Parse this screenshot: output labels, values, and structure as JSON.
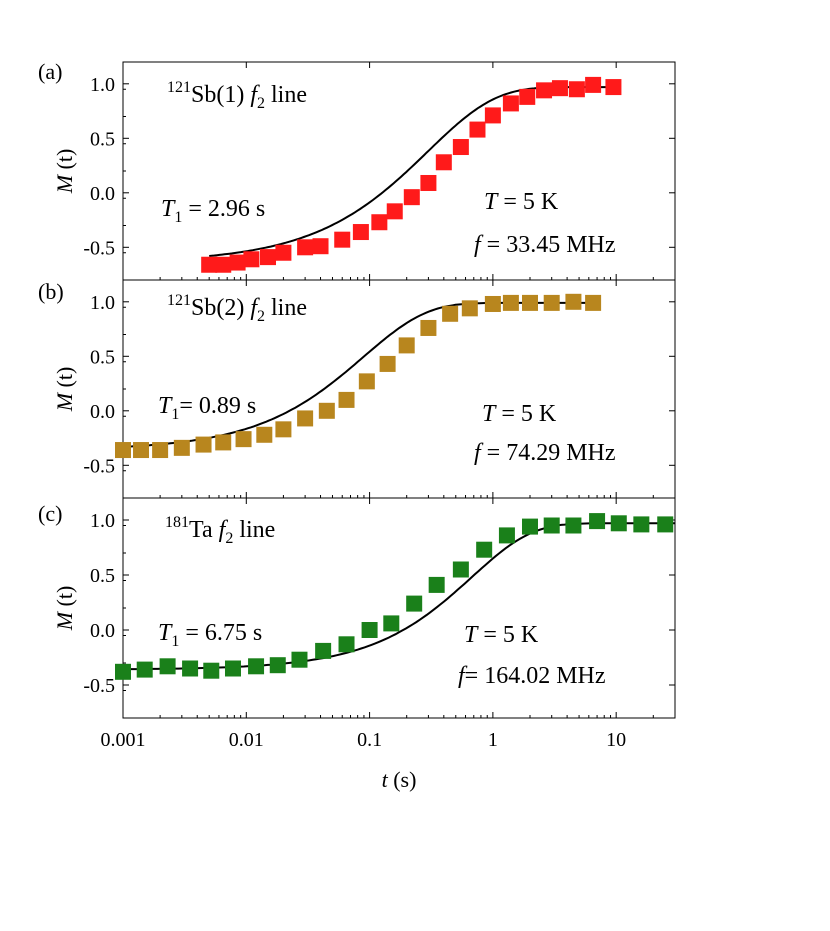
{
  "chart_data": [
    {
      "type": "scatter",
      "panel_label": "(a)",
      "color": "#ff1a1a",
      "nucleus_mass": "121",
      "nucleus_rest": "Sb(1) ",
      "line_f": "f",
      "line_sub": "2",
      "line_word": " line",
      "t1_sym": "T",
      "t1_sub": "1",
      "t1_value": " = 2.96 s",
      "temp_sym": "T",
      "temp_value": " = 5 K",
      "freq_sym": "f",
      "freq_value": " = 33.45 MHz",
      "ylabel": "M (t)",
      "ylim": [
        -0.8,
        1.2
      ],
      "yticks": [
        "1.0",
        "0.5",
        "0.0",
        "-0.5"
      ],
      "ytick_values": [
        1.0,
        0.5,
        0.0,
        -0.5
      ],
      "fit": {
        "T1": 2.96,
        "M0": -0.64,
        "Minf": 0.97,
        "beta": 0.8
      },
      "x": [
        0.005,
        0.0065,
        0.0085,
        0.011,
        0.015,
        0.02,
        0.03,
        0.04,
        0.06,
        0.085,
        0.12,
        0.16,
        0.22,
        0.3,
        0.4,
        0.55,
        0.75,
        1.0,
        1.4,
        1.9,
        2.6,
        3.5,
        4.8,
        6.5,
        9.5
      ],
      "y": [
        -0.66,
        -0.66,
        -0.64,
        -0.61,
        -0.59,
        -0.55,
        -0.5,
        -0.49,
        -0.43,
        -0.36,
        -0.27,
        -0.17,
        -0.04,
        0.09,
        0.28,
        0.42,
        0.58,
        0.71,
        0.82,
        0.88,
        0.94,
        0.96,
        0.95,
        0.99,
        0.97
      ]
    },
    {
      "type": "scatter",
      "panel_label": "(b)",
      "color": "#b8861e",
      "nucleus_mass": "121",
      "nucleus_rest": "Sb(2) ",
      "line_f": "f",
      "line_sub": "2",
      "line_word": " line",
      "t1_sym": "T",
      "t1_sub": "1",
      "t1_value": "= 0.89 s",
      "temp_sym": "T",
      "temp_value": " = 5 K",
      "freq_sym": "f",
      "freq_value": " = 74.29 MHz",
      "ylabel": "M (t)",
      "ylim": [
        -0.8,
        1.2
      ],
      "yticks": [
        "1.0",
        "0.5",
        "0.0",
        "-0.5"
      ],
      "ytick_values": [
        1.0,
        0.5,
        0.0,
        -0.5
      ],
      "fit": {
        "T1": 0.89,
        "M0": -0.36,
        "Minf": 0.99,
        "beta": 0.85
      },
      "x": [
        0.001,
        0.0014,
        0.002,
        0.003,
        0.0045,
        0.0065,
        0.0095,
        0.014,
        0.02,
        0.03,
        0.045,
        0.065,
        0.095,
        0.14,
        0.2,
        0.3,
        0.45,
        0.65,
        1.0,
        1.4,
        2.0,
        3.0,
        4.5,
        6.5
      ],
      "y": [
        -0.36,
        -0.36,
        -0.36,
        -0.34,
        -0.31,
        -0.29,
        -0.26,
        -0.22,
        -0.17,
        -0.07,
        0.0,
        0.1,
        0.27,
        0.43,
        0.6,
        0.76,
        0.89,
        0.94,
        0.98,
        0.99,
        0.99,
        0.99,
        1.0,
        0.99
      ]
    },
    {
      "type": "scatter",
      "panel_label": "(c)",
      "color": "#1a801a",
      "nucleus_mass": "181",
      "nucleus_rest": "Ta ",
      "line_f": "f",
      "line_sub": "2",
      "line_word": " line",
      "t1_sym": "T",
      "t1_sub": "1",
      "t1_value": " = 6.75 s",
      "temp_sym": "T",
      "temp_value": " = 5 K",
      "freq_sym": "f",
      "freq_value": "= 164.02 MHz",
      "ylabel": "M (t)",
      "ylim": [
        -0.8,
        1.2
      ],
      "yticks": [
        "1.0",
        "0.5",
        "0.0",
        "-0.5"
      ],
      "ytick_values": [
        1.0,
        0.5,
        0.0,
        -0.5
      ],
      "fit": {
        "T1": 6.75,
        "M0": -0.36,
        "Minf": 0.97,
        "beta": 0.9
      },
      "x": [
        0.001,
        0.0015,
        0.0023,
        0.0035,
        0.0052,
        0.0078,
        0.012,
        0.018,
        0.027,
        0.042,
        0.065,
        0.1,
        0.15,
        0.23,
        0.35,
        0.55,
        0.85,
        1.3,
        2.0,
        3.0,
        4.5,
        7.0,
        10.5,
        16.0,
        25.0
      ],
      "y": [
        -0.38,
        -0.36,
        -0.33,
        -0.35,
        -0.37,
        -0.35,
        -0.33,
        -0.32,
        -0.27,
        -0.19,
        -0.13,
        0.0,
        0.06,
        0.24,
        0.41,
        0.55,
        0.73,
        0.86,
        0.94,
        0.95,
        0.95,
        0.99,
        0.97,
        0.96,
        0.96
      ]
    }
  ],
  "x_axis": {
    "label_sym": "t",
    "label_unit": " (s)",
    "ticks": [
      "0.001",
      "0.01",
      "0.1",
      "1",
      "10"
    ],
    "tick_values": [
      0.001,
      0.01,
      0.1,
      1,
      10
    ],
    "xlim": [
      0.001,
      30
    ],
    "scale": "log"
  }
}
